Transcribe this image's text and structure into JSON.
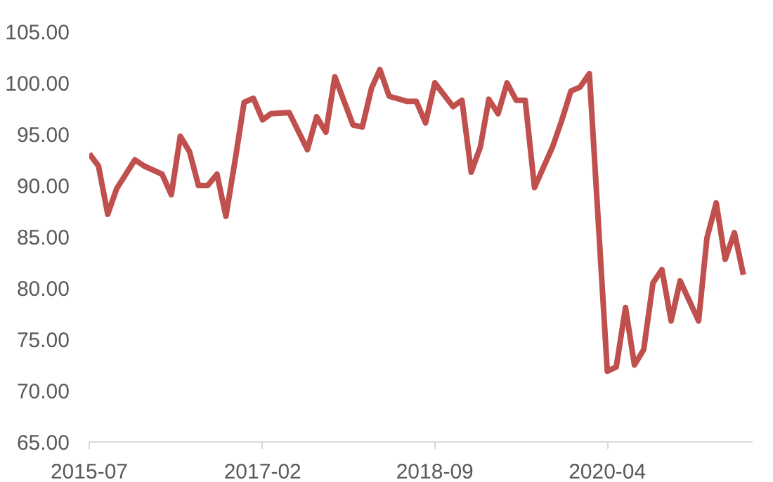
{
  "chart_data": {
    "type": "line",
    "x": [
      "2015-07",
      "2015-08",
      "2015-09",
      "2015-10",
      "2015-12",
      "2016-01",
      "2016-03",
      "2016-04",
      "2016-05",
      "2016-06",
      "2016-07",
      "2016-08",
      "2016-09",
      "2016-10",
      "2016-11",
      "2016-12",
      "2017-01",
      "2017-02",
      "2017-03",
      "2017-05",
      "2017-07",
      "2017-08",
      "2017-09",
      "2017-10",
      "2017-12",
      "2018-01",
      "2018-02",
      "2018-03",
      "2018-04",
      "2018-06",
      "2018-07",
      "2018-08",
      "2018-09",
      "2018-11",
      "2018-12",
      "2019-01",
      "2019-02",
      "2019-03",
      "2019-04",
      "2019-05",
      "2019-06",
      "2019-07",
      "2019-08",
      "2019-10",
      "2019-11",
      "2019-12",
      "2020-01",
      "2020-02",
      "2020-04",
      "2020-05",
      "2020-06",
      "2020-07",
      "2020-08",
      "2020-09",
      "2020-10",
      "2020-11",
      "2020-12",
      "2021-02",
      "2021-03",
      "2021-04",
      "2021-05",
      "2021-06",
      "2021-07"
    ],
    "series": [
      {
        "color": "#c0504d",
        "values": [
          93.1,
          91.9,
          87.2,
          89.7,
          92.5,
          91.9,
          91.1,
          89.1,
          94.8,
          93.3,
          90.0,
          90.0,
          91.1,
          87.0,
          92.5,
          98.1,
          98.5,
          96.4,
          97.0,
          97.1,
          93.5,
          96.7,
          95.2,
          100.6,
          95.9,
          95.7,
          99.5,
          101.3,
          98.7,
          98.2,
          98.2,
          96.1,
          100.0,
          97.7,
          98.3,
          91.3,
          93.8,
          98.4,
          97.0,
          100.0,
          98.3,
          98.3,
          89.8,
          93.8,
          96.4,
          99.2,
          99.6,
          100.9,
          71.9,
          72.3,
          78.1,
          72.5,
          74.0,
          80.5,
          81.8,
          76.8,
          80.7,
          76.8,
          84.9,
          88.3,
          82.8,
          85.4,
          81.3
        ]
      }
    ],
    "xlim": [
      "2015-07",
      "2021-08"
    ],
    "xticks": [
      {
        "value": "2015-07",
        "label": "2015-07"
      },
      {
        "value": "2017-02",
        "label": "2017-02"
      },
      {
        "value": "2018-09",
        "label": "2018-09"
      },
      {
        "value": "2020-04",
        "label": "2020-04"
      }
    ],
    "ylim": [
      65,
      105
    ],
    "yticks": [
      {
        "value": 65,
        "label": "65.00"
      },
      {
        "value": 70,
        "label": "70.00"
      },
      {
        "value": 75,
        "label": "75.00"
      },
      {
        "value": 80,
        "label": "80.00"
      },
      {
        "value": 85,
        "label": "85.00"
      },
      {
        "value": 90,
        "label": "90.00"
      },
      {
        "value": 95,
        "label": "95.00"
      },
      {
        "value": 100,
        "label": "100.00"
      },
      {
        "value": 105,
        "label": "105.00"
      }
    ],
    "grid": false,
    "marker": "none",
    "line_style": "solid"
  }
}
